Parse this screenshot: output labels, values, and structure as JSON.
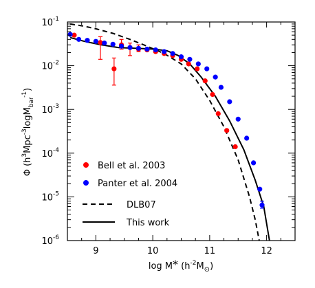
{
  "chart_data": {
    "type": "scatter",
    "title": "",
    "xlabel_main": "log M",
    "xlabel_sub": "*",
    "xlabel_unit_open": " (h",
    "xlabel_unit_exp": "-2",
    "xlabel_unit_M": "M",
    "xlabel_unit_close": ")",
    "ylabel_parts": [
      "Φ (h",
      "3",
      "Mpc",
      "-3",
      "logM",
      "bar",
      "-1",
      ")"
    ],
    "xlim": [
      8.5,
      12.5
    ],
    "ylim": [
      1e-06,
      0.1
    ],
    "ylog": true,
    "x_ticks": [
      9,
      10,
      11,
      12
    ],
    "x_tick_labels": [
      "9",
      "10",
      "11",
      "12"
    ],
    "y_tick_exponents": [
      -6,
      -5,
      -4,
      -3,
      -2,
      -1
    ],
    "y_tick_base": "10",
    "legend_position": "bottom-left",
    "series": [
      {
        "name": "Bell et al. 2003",
        "kind": "points",
        "color": "#ff0000",
        "points": [
          {
            "x": 8.62,
            "y": 0.05
          },
          {
            "x": 9.08,
            "y": 0.034,
            "ylo": 0.014,
            "yhi": 0.046
          },
          {
            "x": 9.32,
            "y": 0.0085,
            "ylo": 0.0036,
            "yhi": 0.015
          },
          {
            "x": 9.45,
            "y": 0.03,
            "ylo": 0.024,
            "yhi": 0.04
          },
          {
            "x": 9.6,
            "y": 0.026,
            "ylo": 0.017,
            "yhi": 0.033
          },
          {
            "x": 9.75,
            "y": 0.024,
            "ylo": 0.021,
            "yhi": 0.03
          },
          {
            "x": 9.9,
            "y": 0.023
          },
          {
            "x": 10.05,
            "y": 0.021
          },
          {
            "x": 10.2,
            "y": 0.019
          },
          {
            "x": 10.35,
            "y": 0.017
          },
          {
            "x": 10.5,
            "y": 0.014
          },
          {
            "x": 10.63,
            "y": 0.011
          },
          {
            "x": 10.78,
            "y": 0.0085
          },
          {
            "x": 10.92,
            "y": 0.0045
          },
          {
            "x": 11.05,
            "y": 0.0022
          },
          {
            "x": 11.15,
            "y": 0.0008
          },
          {
            "x": 11.3,
            "y": 0.00033
          },
          {
            "x": 11.45,
            "y": 0.00014
          }
        ]
      },
      {
        "name": "Panter et al. 2004",
        "kind": "points",
        "color": "#0000ff",
        "points": [
          {
            "x": 8.55,
            "y": 0.052
          },
          {
            "x": 8.7,
            "y": 0.04
          },
          {
            "x": 8.85,
            "y": 0.038
          },
          {
            "x": 9.0,
            "y": 0.036
          },
          {
            "x": 9.15,
            "y": 0.033
          },
          {
            "x": 9.3,
            "y": 0.031
          },
          {
            "x": 9.45,
            "y": 0.028
          },
          {
            "x": 9.6,
            "y": 0.026
          },
          {
            "x": 9.75,
            "y": 0.025
          },
          {
            "x": 9.9,
            "y": 0.024
          },
          {
            "x": 10.05,
            "y": 0.023
          },
          {
            "x": 10.2,
            "y": 0.021
          },
          {
            "x": 10.35,
            "y": 0.019
          },
          {
            "x": 10.5,
            "y": 0.016
          },
          {
            "x": 10.65,
            "y": 0.014
          },
          {
            "x": 10.8,
            "y": 0.011
          },
          {
            "x": 10.95,
            "y": 0.0085
          },
          {
            "x": 11.1,
            "y": 0.0055
          },
          {
            "x": 11.2,
            "y": 0.0032
          },
          {
            "x": 11.35,
            "y": 0.0015
          },
          {
            "x": 11.5,
            "y": 0.0006
          },
          {
            "x": 11.65,
            "y": 0.00022
          },
          {
            "x": 11.77,
            "y": 6e-05
          },
          {
            "x": 11.88,
            "y": 1.5e-05
          },
          {
            "x": 11.92,
            "y": 6.5e-06,
            "ylo": 5.5e-06,
            "yhi": 8e-06
          }
        ]
      },
      {
        "name": "DLB07",
        "kind": "line",
        "dash": "dashed",
        "points": [
          {
            "x": 8.55,
            "y": 0.09
          },
          {
            "x": 8.8,
            "y": 0.08
          },
          {
            "x": 9.0,
            "y": 0.07
          },
          {
            "x": 9.3,
            "y": 0.055
          },
          {
            "x": 9.6,
            "y": 0.04
          },
          {
            "x": 9.9,
            "y": 0.028
          },
          {
            "x": 10.2,
            "y": 0.019
          },
          {
            "x": 10.5,
            "y": 0.011
          },
          {
            "x": 10.75,
            "y": 0.005
          },
          {
            "x": 11.0,
            "y": 0.0016
          },
          {
            "x": 11.25,
            "y": 0.0004
          },
          {
            "x": 11.5,
            "y": 7e-05
          },
          {
            "x": 11.7,
            "y": 1e-05
          },
          {
            "x": 11.8,
            "y": 3e-06
          },
          {
            "x": 11.87,
            "y": 1e-06
          }
        ]
      },
      {
        "name": "This work",
        "kind": "line",
        "dash": "solid",
        "points": [
          {
            "x": 8.55,
            "y": 0.044
          },
          {
            "x": 8.8,
            "y": 0.036
          },
          {
            "x": 9.1,
            "y": 0.03
          },
          {
            "x": 9.4,
            "y": 0.026
          },
          {
            "x": 9.7,
            "y": 0.025
          },
          {
            "x": 10.0,
            "y": 0.024
          },
          {
            "x": 10.25,
            "y": 0.022
          },
          {
            "x": 10.45,
            "y": 0.017
          },
          {
            "x": 10.65,
            "y": 0.011
          },
          {
            "x": 10.85,
            "y": 0.0055
          },
          {
            "x": 11.1,
            "y": 0.002
          },
          {
            "x": 11.35,
            "y": 0.00055
          },
          {
            "x": 11.6,
            "y": 0.00012
          },
          {
            "x": 11.8,
            "y": 2.4e-05
          },
          {
            "x": 11.95,
            "y": 6e-06
          },
          {
            "x": 12.05,
            "y": 1e-06
          }
        ]
      }
    ]
  },
  "legend": [
    {
      "label": "Bell et al. 2003",
      "kind": "dot",
      "color": "#ff0000"
    },
    {
      "label": "Panter et al. 2004",
      "kind": "dot",
      "color": "#0000ff"
    },
    {
      "label": "DLB07",
      "kind": "dashed"
    },
    {
      "label": "This work",
      "kind": "solid"
    }
  ]
}
